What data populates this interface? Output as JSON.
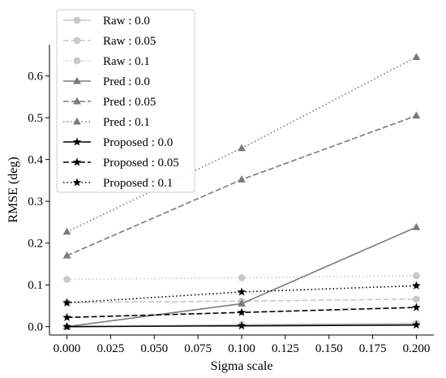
{
  "chart_data": {
    "type": "line",
    "title": "",
    "xlabel": "Sigma scale",
    "ylabel": "RMSE (deg)",
    "x": [
      0.0,
      0.1,
      0.2
    ],
    "xlim": [
      -0.01,
      0.21
    ],
    "ylim": [
      -0.02,
      0.675
    ],
    "xticks": [
      "0.000",
      "0.025",
      "0.050",
      "0.075",
      "0.100",
      "0.125",
      "0.150",
      "0.175",
      "0.200"
    ],
    "yticks": [
      "0.0",
      "0.1",
      "0.2",
      "0.3",
      "0.4",
      "0.5",
      "0.6"
    ],
    "grid": false,
    "legend_position": "upper-left",
    "series": [
      {
        "name": "Raw : 0.0",
        "values": [
          0.0,
          0.005,
          0.008
        ],
        "color": "#c8c8c8",
        "dash": "solid",
        "marker": "circle"
      },
      {
        "name": "Raw : 0.05",
        "values": [
          0.058,
          0.061,
          0.066
        ],
        "color": "#c8c8c8",
        "dash": "dashed",
        "marker": "circle"
      },
      {
        "name": "Raw : 0.1",
        "values": [
          0.113,
          0.117,
          0.122
        ],
        "color": "#c8c8c8",
        "dash": "dotted",
        "marker": "circle"
      },
      {
        "name": "Pred : 0.0",
        "values": [
          0.0,
          0.055,
          0.238
        ],
        "color": "#7a7a7a",
        "dash": "solid",
        "marker": "triangle"
      },
      {
        "name": "Pred : 0.05",
        "values": [
          0.17,
          0.352,
          0.505
        ],
        "color": "#7a7a7a",
        "dash": "dashed",
        "marker": "triangle"
      },
      {
        "name": "Pred : 0.1",
        "values": [
          0.227,
          0.427,
          0.645
        ],
        "color": "#7a7a7a",
        "dash": "dotted",
        "marker": "triangle"
      },
      {
        "name": "Proposed : 0.0",
        "values": [
          0.0,
          0.002,
          0.004
        ],
        "color": "#000000",
        "dash": "solid",
        "marker": "star"
      },
      {
        "name": "Proposed : 0.05",
        "values": [
          0.022,
          0.034,
          0.046
        ],
        "color": "#000000",
        "dash": "dashed",
        "marker": "star"
      },
      {
        "name": "Proposed : 0.1",
        "values": [
          0.057,
          0.083,
          0.098
        ],
        "color": "#000000",
        "dash": "dotted",
        "marker": "star"
      }
    ]
  }
}
